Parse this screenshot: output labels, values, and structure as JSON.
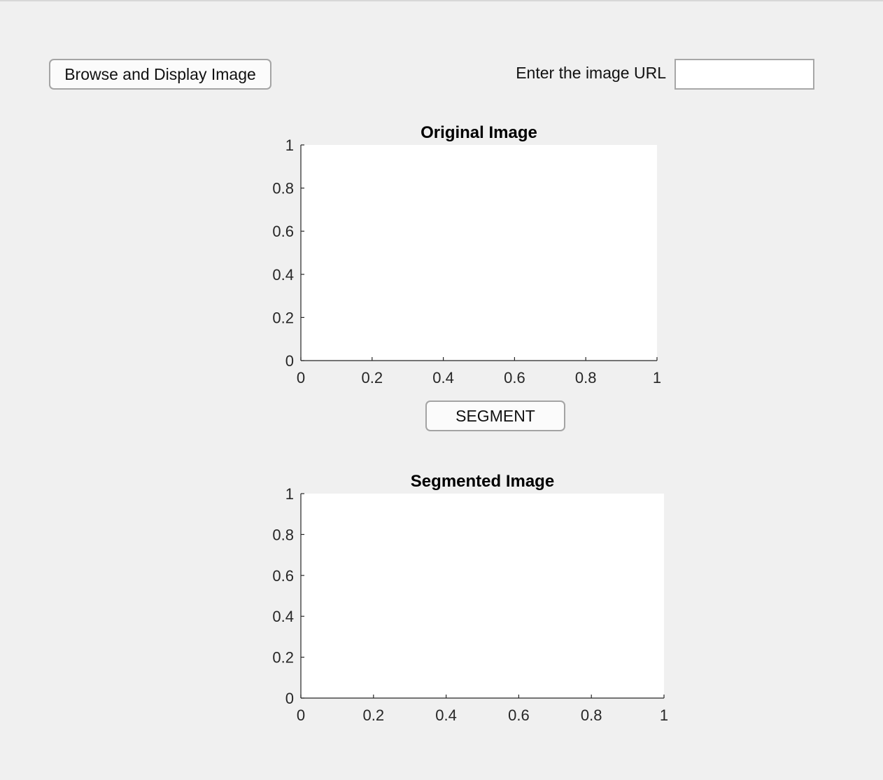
{
  "toolbar": {
    "browse_label": "Browse and Display Image",
    "url_label": "Enter the image URL",
    "url_value": "",
    "url_placeholder": ""
  },
  "segment": {
    "label": "SEGMENT"
  },
  "chart_data": [
    {
      "type": "scatter",
      "title": "Original Image",
      "xlabel": "",
      "ylabel": "",
      "xlim": [
        0,
        1
      ],
      "ylim": [
        0,
        1
      ],
      "xticks": [
        "0",
        "0.2",
        "0.4",
        "0.6",
        "0.8",
        "1"
      ],
      "yticks": [
        "0",
        "0.2",
        "0.4",
        "0.6",
        "0.8",
        "1"
      ],
      "grid": false,
      "series": []
    },
    {
      "type": "scatter",
      "title": "Segmented Image",
      "xlabel": "",
      "ylabel": "",
      "xlim": [
        0,
        1
      ],
      "ylim": [
        0,
        1
      ],
      "xticks": [
        "0",
        "0.2",
        "0.4",
        "0.6",
        "0.8",
        "1"
      ],
      "yticks": [
        "0",
        "0.2",
        "0.4",
        "0.6",
        "0.8",
        "1"
      ],
      "grid": false,
      "series": []
    }
  ]
}
